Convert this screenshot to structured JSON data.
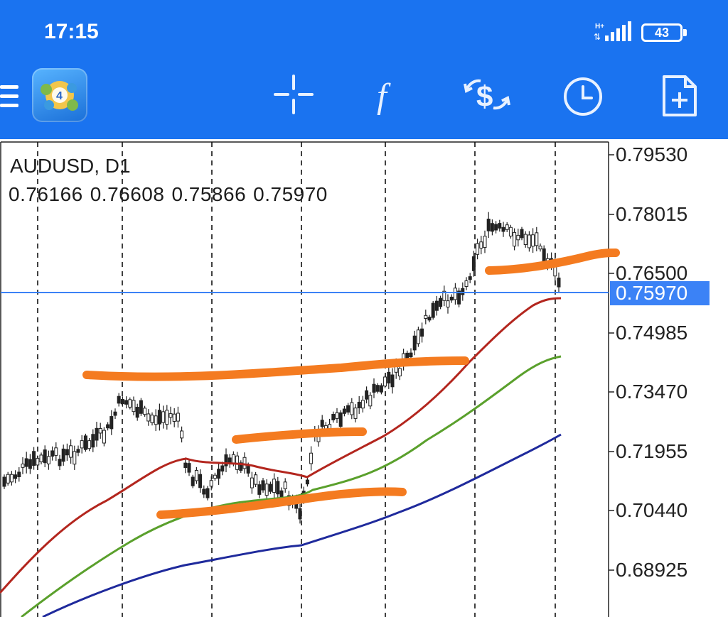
{
  "status_bar": {
    "time": "17:15",
    "network": "H+",
    "battery": "43"
  },
  "toolbar": {
    "menu_icon": "menu-icon",
    "app_icon": "metatrader4-logo",
    "buttons": [
      {
        "name": "crosshair-icon"
      },
      {
        "name": "indicators-icon"
      },
      {
        "name": "symbols-icon"
      },
      {
        "name": "timeframe-icon"
      },
      {
        "name": "new-order-icon"
      }
    ]
  },
  "chart": {
    "symbol": "AUDUSD, D1",
    "open": "0.76166",
    "high": "0.76608",
    "low": "0.75866",
    "close": "0.75970",
    "current_price": "0.75970",
    "price_scale": [
      "0.79530",
      "0.78015",
      "0.76500",
      "0.74985",
      "0.73470",
      "0.71955",
      "0.70440",
      "0.68925"
    ],
    "colors": {
      "ma_fast": "#b3261e",
      "ma_mid": "#5aa02c",
      "ma_slow": "#1f2a9c",
      "drawing": "#f47b20",
      "price_line": "#3b82f6"
    }
  }
}
